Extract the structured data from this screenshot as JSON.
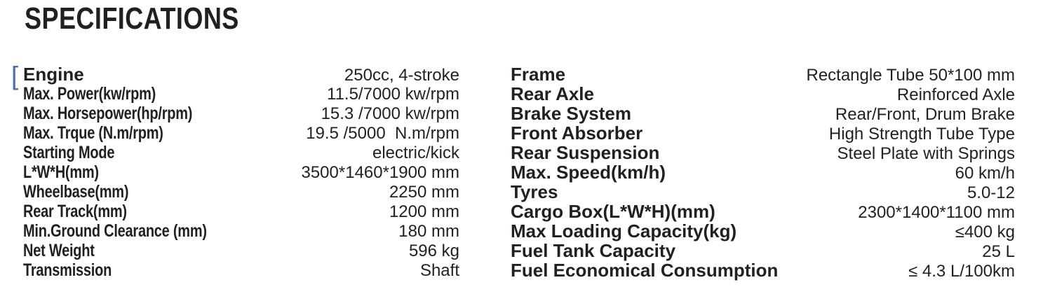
{
  "page_title": "SPECIFICATIONS",
  "bracket_glyph": "[",
  "colors": {
    "text": "#231f20",
    "bracket": "#4b6ea9",
    "background": "#ffffff"
  },
  "spec_table": {
    "left": {
      "rows": [
        {
          "label": "Engine",
          "value": "250cc, 4-stroke"
        },
        {
          "label": "Max. Power(kw/rpm)",
          "value": "11.5/7000 kw/rpm"
        },
        {
          "label": "Max. Horsepower(hp/rpm)",
          "value": "15.3 /7000 kw/rpm"
        },
        {
          "label": "Max. Trque (N.m/rpm)",
          "value": "19.5 /5000  N.m/rpm"
        },
        {
          "label": "Starting Mode",
          "value": "electric/kick"
        },
        {
          "label": "L*W*H(mm)",
          "value": "3500*1460*1900 mm"
        },
        {
          "label": "Wheelbase(mm)",
          "value": "2250 mm"
        },
        {
          "label": "Rear Track(mm)",
          "value": "1200 mm"
        },
        {
          "label": "Min.Ground Clearance (mm)",
          "value": "180 mm"
        },
        {
          "label": "Net Weight",
          "value": "596 kg"
        },
        {
          "label": "Transmission",
          "value": "Shaft"
        }
      ]
    },
    "right": {
      "rows": [
        {
          "label": "Frame",
          "value": "Rectangle Tube 50*100 mm"
        },
        {
          "label": "Rear Axle",
          "value": "Reinforced Axle"
        },
        {
          "label": "Brake System",
          "value": "Rear/Front, Drum Brake"
        },
        {
          "label": "Front Absorber",
          "value": "High Strength Tube Type"
        },
        {
          "label": "Rear Suspension",
          "value": "Steel Plate with Springs"
        },
        {
          "label": "Max. Speed(km/h)",
          "value": "60 km/h"
        },
        {
          "label": "Tyres",
          "value": "5.0-12"
        },
        {
          "label": "Cargo Box(L*W*H)(mm)",
          "value": "2300*1400*1100 mm"
        },
        {
          "label": "Max Loading Capacity(kg)",
          "value": "≤400 kg"
        },
        {
          "label": "Fuel Tank Capacity",
          "value": "25 L"
        },
        {
          "label": "Fuel Economical Consumption",
          "value": "≤ 4.3 L/100km"
        }
      ]
    }
  }
}
